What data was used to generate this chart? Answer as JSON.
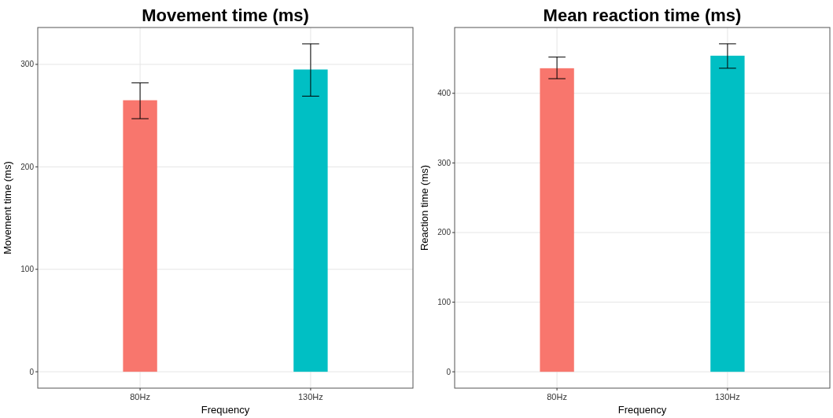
{
  "chart_data": [
    {
      "type": "bar",
      "title": "Movement time (ms)",
      "xlabel": "Frequency",
      "ylabel": "Movement time (ms)",
      "categories": [
        "80Hz",
        "130Hz"
      ],
      "values": [
        265,
        295
      ],
      "colors": [
        "#f8766d",
        "#00bfc4"
      ],
      "errors": [
        [
          247,
          282
        ],
        [
          269,
          320
        ]
      ],
      "ylim": [
        -16,
        336
      ],
      "yticks": [
        0,
        100,
        200,
        300
      ],
      "grid": true
    },
    {
      "type": "bar",
      "title": "Mean reaction time (ms)",
      "xlabel": "Frequency",
      "ylabel": "Reaction time (ms)",
      "categories": [
        "80Hz",
        "130Hz"
      ],
      "values": [
        436,
        454
      ],
      "colors": [
        "#f8766d",
        "#00bfc4"
      ],
      "errors": [
        [
          421,
          452
        ],
        [
          436,
          471
        ]
      ],
      "ylim": [
        -23.5,
        494.5
      ],
      "yticks": [
        0,
        100,
        200,
        300,
        400
      ],
      "grid": true
    }
  ]
}
